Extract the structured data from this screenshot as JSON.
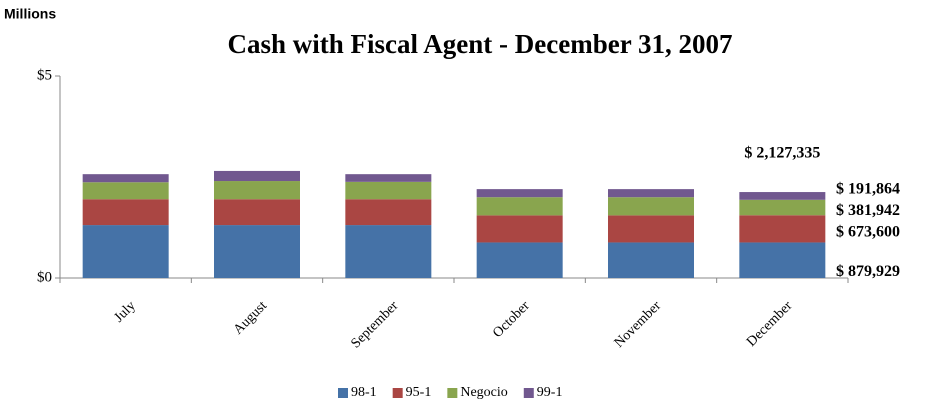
{
  "chart_data": {
    "type": "stacked_bar",
    "title": "Cash with Fiscal Agent - December 31, 2007",
    "y_unit_label": "Millions",
    "categories": [
      "July",
      "August",
      "September",
      "October",
      "November",
      "December"
    ],
    "series": [
      {
        "name": "98-1",
        "color": "#4572a7",
        "values": [
          1.31,
          1.31,
          1.31,
          0.88,
          0.88,
          0.879929
        ],
        "value_labels": [
          null,
          null,
          null,
          null,
          null,
          "$ 879,929"
        ]
      },
      {
        "name": "95-1",
        "color": "#aa4643",
        "values": [
          0.64,
          0.64,
          0.64,
          0.67,
          0.67,
          0.6736
        ],
        "value_labels": [
          null,
          null,
          null,
          null,
          null,
          "$ 673,600"
        ]
      },
      {
        "name": "Negocio",
        "color": "#89a54e",
        "values": [
          0.42,
          0.45,
          0.43,
          0.45,
          0.45,
          0.381942
        ],
        "value_labels": [
          null,
          null,
          null,
          null,
          null,
          "$ 381,942"
        ]
      },
      {
        "name": "99-1",
        "color": "#71588f",
        "values": [
          0.2,
          0.25,
          0.19,
          0.2,
          0.2,
          0.191864
        ],
        "value_labels": [
          null,
          null,
          null,
          null,
          null,
          "$ 191,864"
        ]
      }
    ],
    "total_annotation": {
      "value": 2.127335,
      "label": "$ 2,127,335"
    },
    "ylim": [
      0,
      5
    ],
    "yticks": [
      {
        "value": 0,
        "label": "$0"
      },
      {
        "value": 5,
        "label": "$5"
      }
    ],
    "grid": false,
    "legend": "bottom"
  }
}
